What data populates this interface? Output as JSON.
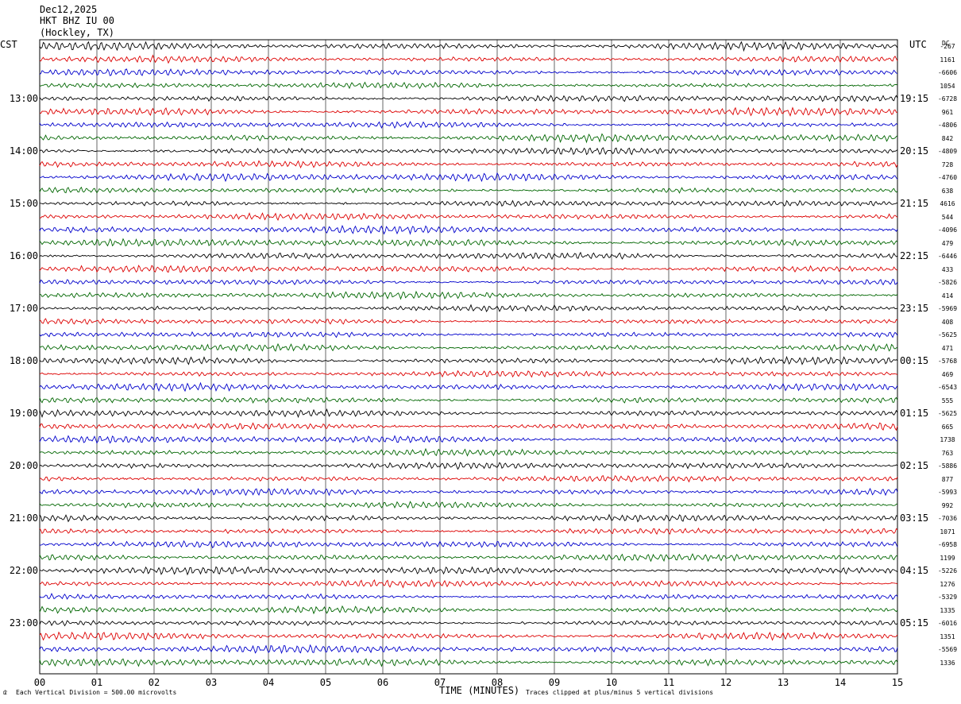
{
  "header": {
    "date": "Dec12,2025",
    "station": "HKT BHZ IU 00",
    "location": "(Hockley, TX)"
  },
  "left_axis_title": "CST",
  "right_axis_title": "UTC",
  "dc_title": "DC",
  "footer": {
    "scale_note": "Each Vertical Division =  500.00 microvolts",
    "clip_note": "Traces clipped at plus/minus 5 vertical divisions"
  },
  "colors": {
    "trace_cycle": [
      "#000000",
      "#dd0000",
      "#0000cc",
      "#006600"
    ],
    "grid": "#000000"
  },
  "chart_data": {
    "type": "line",
    "title": "HKT BHZ IU 00",
    "xlabel": "TIME (MINUTES)",
    "ylabel": "",
    "xlim": [
      0,
      15
    ],
    "x_ticks": [
      "00",
      "01",
      "02",
      "03",
      "04",
      "05",
      "06",
      "07",
      "08",
      "09",
      "10",
      "11",
      "12",
      "13",
      "14",
      "15"
    ],
    "traces_per_hour": 4,
    "trace_count": 48,
    "left_ticks": [
      "13:00",
      "14:00",
      "15:00",
      "16:00",
      "17:00",
      "18:00",
      "19:00",
      "20:00",
      "21:00",
      "22:00",
      "23:00"
    ],
    "right_ticks": [
      "19:15",
      "20:15",
      "21:15",
      "22:15",
      "23:15",
      "00:15",
      "01:15",
      "02:15",
      "03:15",
      "04:15",
      "05:15"
    ],
    "dc_offsets": [
      "-267",
      "1161",
      "-6606",
      "1054",
      "-6728",
      "961",
      "-4806",
      "842",
      "-4809",
      "728",
      "-4760",
      "638",
      "4616",
      "544",
      "-4096",
      "479",
      "-6446",
      "433",
      "-5826",
      "414",
      "-5969",
      "408",
      "-5625",
      "471",
      "-5768",
      "469",
      "-6543",
      "555",
      "-5625",
      "665",
      "1738",
      "763",
      "-5886",
      "877",
      "-5993",
      "992",
      "-7036",
      "1071",
      "-6958",
      "1199",
      "-5226",
      "1276",
      "-5329",
      "1335",
      "-6016",
      "1351",
      "-5569",
      "1336"
    ]
  }
}
